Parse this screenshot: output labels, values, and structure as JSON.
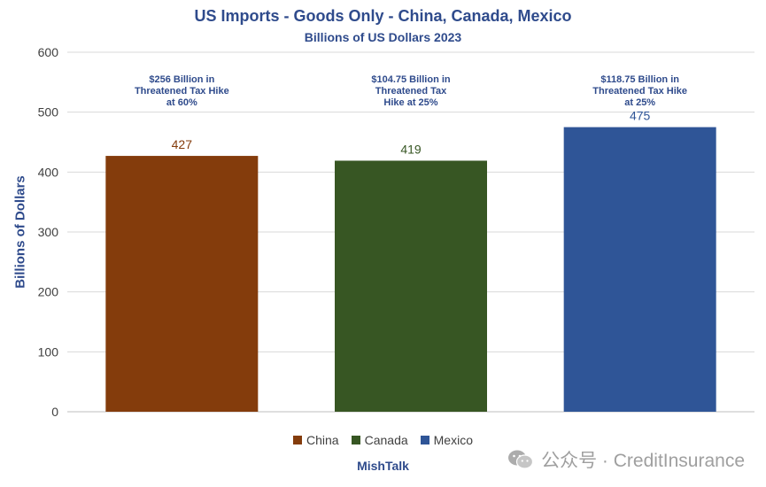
{
  "chart_data": {
    "type": "bar",
    "title": "US Imports - Goods Only - China, Canada, Mexico",
    "subtitle": "Billions of US Dollars 2023",
    "xlabel": "",
    "ylabel": "Billions of Dollars",
    "ylim": [
      0,
      600
    ],
    "yticks": [
      0,
      100,
      200,
      300,
      400,
      500,
      600
    ],
    "grid": true,
    "legend_position": "bottom",
    "categories": [
      "China",
      "Canada",
      "Mexico"
    ],
    "values": [
      427,
      419,
      475
    ],
    "data_labels": [
      "427",
      "419",
      "475"
    ],
    "colors": [
      "#843C0C",
      "#375623",
      "#2F5597"
    ],
    "annotations": [
      "$256 Billion in\nThreatened Tax Hike\nat 60%",
      "$104.75 Billion in\nThreatened Tax\nHike at 25%",
      "$118.75 Billion in\nThreatened Tax Hike\nat 25%"
    ]
  },
  "footer": "MishTalk",
  "watermark": {
    "text": "公众号 · CreditInsurance",
    "icon": "wechat-icon"
  }
}
